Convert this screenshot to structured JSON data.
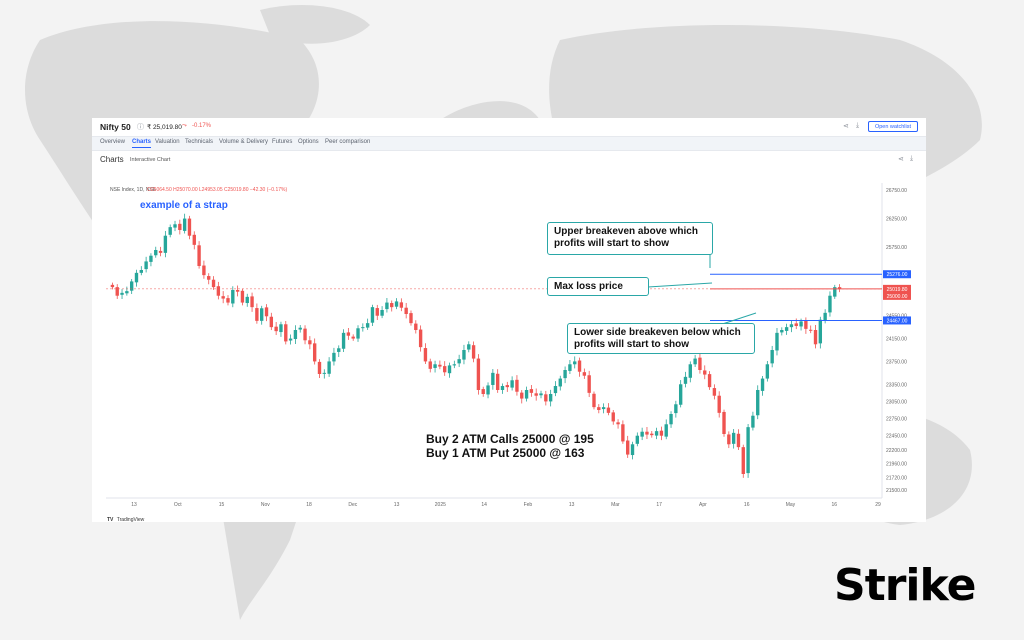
{
  "header": {
    "symbol": "Nifty 50",
    "price": "₹ 25,019.80",
    "change": "-0.17%",
    "open_watchlist_label": "Open watchlist"
  },
  "tabs": [
    {
      "label": "Overview"
    },
    {
      "label": "Charts",
      "active": true
    },
    {
      "label": "Valuation"
    },
    {
      "label": "Technicals"
    },
    {
      "label": "Volume & Delivery"
    },
    {
      "label": "Futures"
    },
    {
      "label": "Options"
    },
    {
      "label": "Peer comparison"
    }
  ],
  "subheader": {
    "title": "Charts",
    "mode": "Interactive Chart"
  },
  "legend": {
    "name": "NSE Index, 1D, NSE",
    "ohlc": "O25064.50  H25070.00  L24953.05  C25019.80  −42.30 (−0.17%)"
  },
  "annotation_strap": "example of a strap",
  "trade_lines": [
    "Buy 2 ATM Calls 25000 @ 195",
    "Buy 1 ATM Put 25000 @ 163"
  ],
  "callouts": {
    "upper": "Upper breakeven above which profits will start to show",
    "maxloss": "Max loss price",
    "lower": "Lower side breakeven below which profits will start to show"
  },
  "footer": {
    "brand": "TradingView"
  },
  "logo": {
    "text": "Strike",
    "accent": "#2962ff"
  },
  "colors": {
    "up": "#26a69a",
    "down": "#ef5350",
    "upper_line": "#2962ff",
    "lower_line": "#2962ff",
    "price_line": "#ef5350"
  },
  "chart_data": {
    "type": "candlestick",
    "ylim": [
      21500,
      26750
    ],
    "y_ticks": [
      26750,
      26250,
      25750,
      25250,
      24550,
      24150,
      23750,
      23350,
      23050,
      22750,
      22450,
      22200,
      21960,
      21720,
      21500
    ],
    "x_ticks": [
      "13",
      "Oct",
      "15",
      "Nov",
      "18",
      "Dec",
      "13",
      "2025",
      "14",
      "Feb",
      "13",
      "Mar",
      "17",
      "Apr",
      "16",
      "May",
      "16",
      "29"
    ],
    "level_labels": [
      {
        "value": 25276.0,
        "label": "25276.00",
        "color": "#2962ff"
      },
      {
        "value": 25019.8,
        "label": "25019.80",
        "color": "#ef5350"
      },
      {
        "value": 25000.0,
        "label": "25000.00",
        "color": "#ef5350"
      },
      {
        "value": 24467.0,
        "label": "24467.00",
        "color": "#2962ff"
      }
    ],
    "closes": [
      25050,
      24900,
      24950,
      24980,
      25150,
      25300,
      25350,
      25500,
      25600,
      25700,
      25650,
      25950,
      26100,
      26150,
      26050,
      26250,
      25950,
      25790,
      25420,
      25260,
      25180,
      25050,
      24900,
      24850,
      24780,
      25000,
      24970,
      24780,
      24880,
      24700,
      24460,
      24680,
      24540,
      24350,
      24280,
      24400,
      24100,
      24150,
      24300,
      24340,
      24120,
      24050,
      23750,
      23530,
      23550,
      23750,
      23900,
      23980,
      24250,
      24200,
      24150,
      24330,
      24350,
      24420,
      24700,
      24550,
      24650,
      24780,
      24700,
      24800,
      24690,
      24580,
      24420,
      24300,
      24000,
      23750,
      23620,
      23700,
      23660,
      23560,
      23680,
      23700,
      23790,
      23950,
      24050,
      23800,
      23250,
      23180,
      23330,
      23550,
      23250,
      23320,
      23300,
      23420,
      23220,
      23100,
      23250,
      23200,
      23150,
      23190,
      23050,
      23180,
      23320,
      23450,
      23600,
      23700,
      23750,
      23570,
      23500,
      23200,
      22950,
      22900,
      22950,
      22850,
      22700,
      22650,
      22350,
      22120,
      22300,
      22450,
      22520,
      22470,
      22460,
      22530,
      22450,
      22650,
      22830,
      23000,
      23350,
      23480,
      23700,
      23800,
      23600,
      23520,
      23300,
      23150,
      22850,
      22480,
      22300,
      22500,
      22250,
      21780,
      22600,
      22800,
      23250,
      23450,
      23700,
      23950,
      24250,
      24300,
      24350,
      24400,
      24370,
      24450,
      24320,
      24300,
      24050,
      24480,
      24600,
      24900,
      25050,
      25020
    ]
  }
}
